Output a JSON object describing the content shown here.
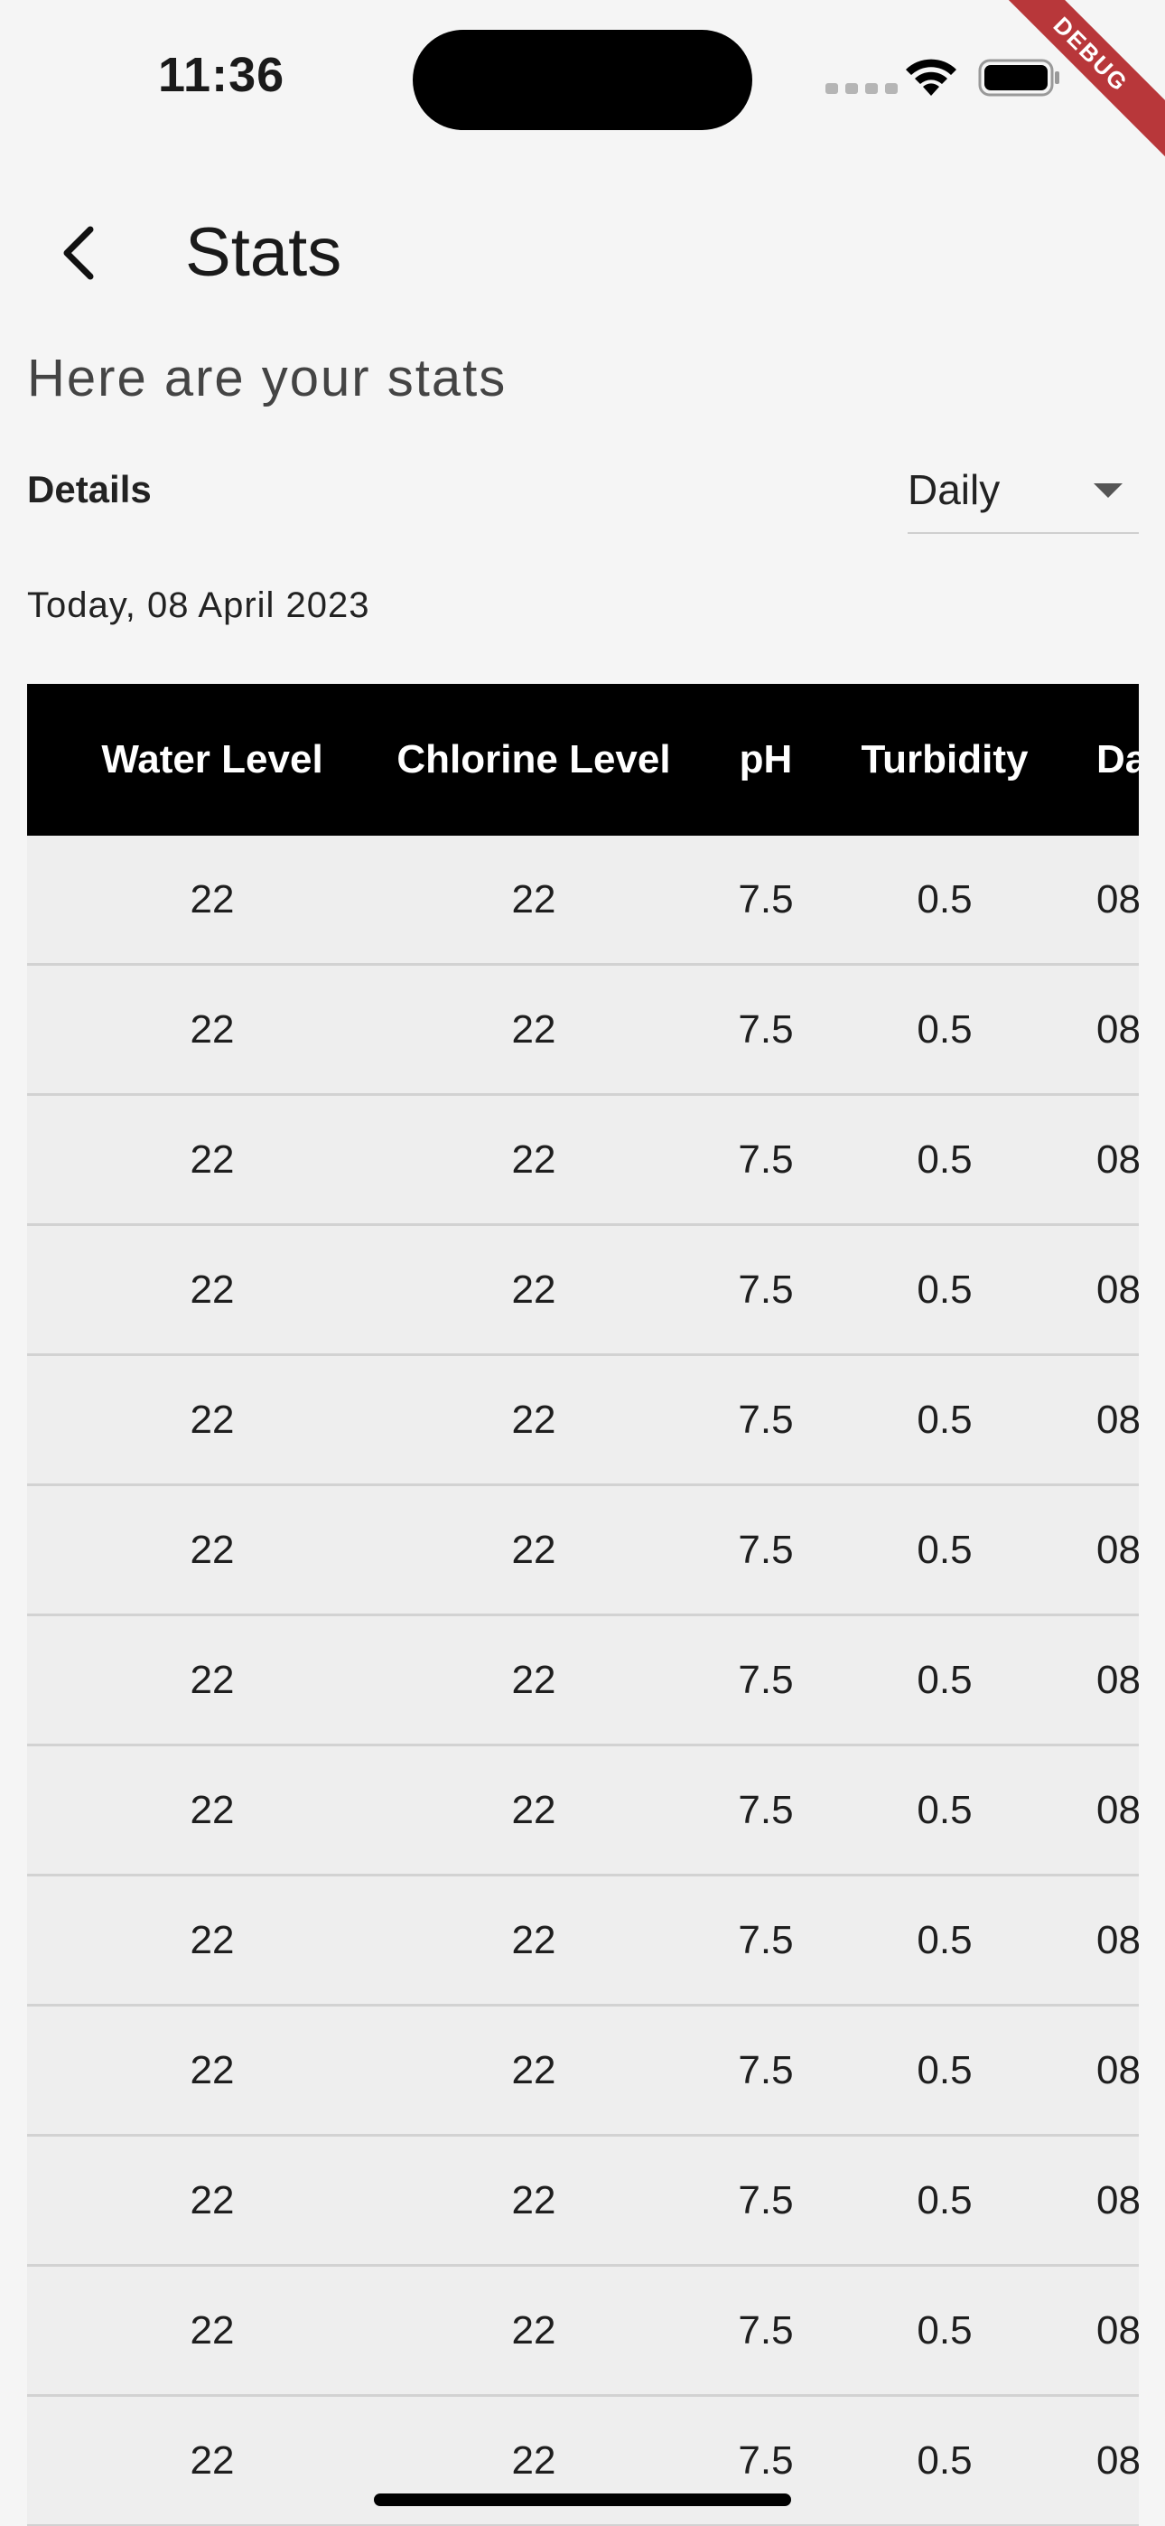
{
  "status_bar": {
    "time": "11:36",
    "icons": [
      "cellular-signal-icon",
      "wifi-icon",
      "battery-icon"
    ]
  },
  "debug_banner": "DEBUG",
  "app_bar": {
    "back_icon": "chevron-left-icon",
    "title": "Stats"
  },
  "subtitle": "Here are your stats",
  "details": {
    "label": "Details",
    "period": {
      "selected": "Daily",
      "icon": "caret-down-icon"
    }
  },
  "date_label": "Today, 08 April 2023",
  "table": {
    "header_bg": "#000000",
    "columns": [
      "Water Level",
      "Chlorine Level",
      "pH",
      "Turbidity",
      "Da"
    ],
    "rows": [
      [
        "22",
        "22",
        "7.5",
        "0.5",
        "08"
      ],
      [
        "22",
        "22",
        "7.5",
        "0.5",
        "08"
      ],
      [
        "22",
        "22",
        "7.5",
        "0.5",
        "08"
      ],
      [
        "22",
        "22",
        "7.5",
        "0.5",
        "08"
      ],
      [
        "22",
        "22",
        "7.5",
        "0.5",
        "08"
      ],
      [
        "22",
        "22",
        "7.5",
        "0.5",
        "08"
      ],
      [
        "22",
        "22",
        "7.5",
        "0.5",
        "08"
      ],
      [
        "22",
        "22",
        "7.5",
        "0.5",
        "08"
      ],
      [
        "22",
        "22",
        "7.5",
        "0.5",
        "08"
      ],
      [
        "22",
        "22",
        "7.5",
        "0.5",
        "08"
      ],
      [
        "22",
        "22",
        "7.5",
        "0.5",
        "08"
      ],
      [
        "22",
        "22",
        "7.5",
        "0.5",
        "08"
      ],
      [
        "22",
        "22",
        "7.5",
        "0.5",
        "08"
      ]
    ]
  }
}
